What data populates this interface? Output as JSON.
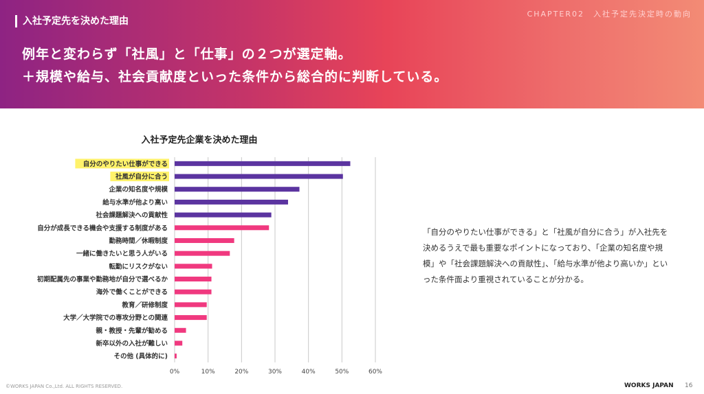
{
  "header": {
    "section": "入社予定先を決めた理由",
    "chapter": "CHAPTER02　入社予定先決定時の動向",
    "headline1": "例年と変わらず「社風」と「仕事」の２つが選定軸。",
    "headline2": "＋規模や給与、社会貢献度といった条件から総合的に判断している。"
  },
  "chart_data": {
    "type": "bar",
    "orientation": "horizontal",
    "title": "入社予定先企業を決めた理由",
    "categories": [
      "自分のやりたい仕事ができる",
      "社風が自分に合う",
      "企業の知名度や規模",
      "給与水準が他より高い",
      "社会課題解決への貢献性",
      "自分が成長できる機会や支援する制度がある",
      "勤務時間／休暇制度",
      "一緒に働きたいと思う人がいる",
      "転勤にリスクがない",
      "初期配属先の事業や勤務地が自分で選べるか",
      "海外で働くことができる",
      "教育／研修制度",
      "大学／大学院での専攻分野との関連",
      "親・教授・先輩が勧める",
      "新卒以外の入社が難しい",
      "その他 (具体的に)"
    ],
    "values": [
      52.5,
      50.3,
      37.3,
      33.9,
      28.9,
      28.2,
      17.8,
      16.5,
      11.2,
      11.0,
      11.0,
      9.6,
      9.6,
      3.4,
      2.3,
      0.6
    ],
    "highlighted": [
      0,
      1
    ],
    "colors": {
      "top5": "#5b34a0",
      "others": "#f0397f",
      "highlight": "#fff26b"
    },
    "xlim": [
      0,
      60
    ],
    "xticks": [
      "0%",
      "10%",
      "20%",
      "30%",
      "40%",
      "50%",
      "60%"
    ],
    "grid": true
  },
  "description": "「自分のやりたい仕事ができる」と「社風が自分に合う」が入社先を決めるうえで最も重要なポイントになっており、「企業の知名度や規模」や「社会課題解決への貢献性」、「給与水準が他より高いか」といった条件面より重視されていることが分かる。",
  "footer": {
    "copyright": "©WORKS JAPAN Co.,Ltd. ALL RIGHTS RESERVED.",
    "logo": "WORKS JAPAN",
    "page": "16"
  }
}
